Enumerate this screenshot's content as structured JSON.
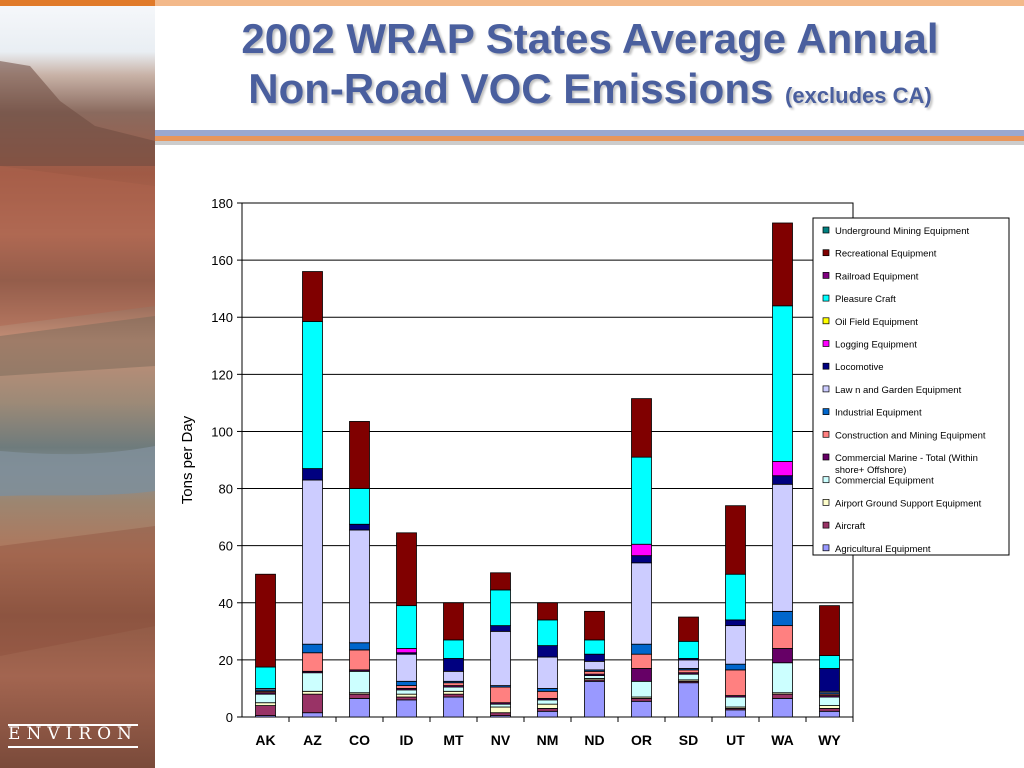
{
  "slide": {
    "title_line1": "2002 WRAP States Average Annual",
    "title_line2": "Non-Road VOC Emissions",
    "title_suffix": "(excludes CA)",
    "logo_text": "ENVIRON",
    "colors": {
      "title": "#4a5f9e",
      "top_bar": "#e07a2a",
      "rule_blue": "#9aa8d0",
      "rule_orange": "#e8965c"
    }
  },
  "chart_data": {
    "type": "bar",
    "stacked": true,
    "title": "",
    "xlabel": "",
    "ylabel": "Tons per Day",
    "ylim": [
      0,
      180
    ],
    "yticks": [
      0,
      20,
      40,
      60,
      80,
      100,
      120,
      140,
      160,
      180
    ],
    "grid": true,
    "legend_position": "top-right",
    "categories": [
      "AK",
      "AZ",
      "CO",
      "ID",
      "MT",
      "NV",
      "NM",
      "ND",
      "OR",
      "SD",
      "UT",
      "WA",
      "WY"
    ],
    "series": [
      {
        "name": "Agricultural Equipment",
        "color": "#9999ff",
        "values": [
          0.5,
          1.5,
          6.5,
          6,
          7,
          0.5,
          2,
          12.5,
          5.5,
          12,
          2.5,
          6.5,
          2
        ]
      },
      {
        "name": "Aircraft",
        "color": "#993366",
        "values": [
          3.5,
          6.5,
          1.5,
          1,
          1,
          1,
          1,
          0.5,
          1,
          0.5,
          0.5,
          1.5,
          1
        ]
      },
      {
        "name": "Airport Ground Support Equipment",
        "color": "#ffffcc",
        "values": [
          1,
          1,
          0.5,
          1,
          1,
          2,
          1.5,
          0.5,
          0.5,
          0.5,
          0.5,
          0.5,
          1
        ]
      },
      {
        "name": "Commercial Equipment",
        "color": "#ccffff",
        "values": [
          3,
          6.5,
          7.5,
          1.5,
          1.5,
          1,
          1.5,
          1,
          5.5,
          2,
          3.5,
          10.5,
          3
        ]
      },
      {
        "name": "Commercial Marine - Total (Within shore+ Offshore)",
        "color": "#660066",
        "values": [
          0.5,
          0.5,
          0.5,
          0.5,
          0.5,
          0.5,
          0.5,
          0.5,
          4.5,
          0.5,
          0.5,
          5,
          0.5
        ]
      },
      {
        "name": "Construction and Mining Equipment",
        "color": "#ff8080",
        "values": [
          0.5,
          6.5,
          7,
          1,
          1,
          5.5,
          2.5,
          1,
          5,
          1,
          9,
          8,
          0.5
        ]
      },
      {
        "name": "Industrial Equipment",
        "color": "#0066cc",
        "values": [
          0.5,
          3,
          2.5,
          1.5,
          0.5,
          0.5,
          1,
          0.5,
          3.5,
          0.5,
          2,
          5,
          0.5
        ]
      },
      {
        "name": "Law n and Garden Equipment",
        "color": "#ccccff",
        "values": [
          0.5,
          57.5,
          39.5,
          9.5,
          3.5,
          19,
          11,
          3,
          28.5,
          3,
          13.5,
          44.5,
          0.5
        ]
      },
      {
        "name": "Locomotive",
        "color": "#000080",
        "values": [
          0,
          4,
          2,
          0.5,
          4.5,
          2,
          4,
          2.5,
          2.5,
          0.5,
          2,
          3,
          8
        ]
      },
      {
        "name": "Logging Equipment",
        "color": "#ff00ff",
        "values": [
          0,
          0,
          0,
          1.5,
          0,
          0,
          0,
          0,
          4,
          0,
          0,
          5,
          0
        ]
      },
      {
        "name": "Oil Field Equipment",
        "color": "#ffff00",
        "values": [
          0,
          0,
          0,
          0,
          0,
          0,
          0,
          0,
          0,
          0,
          0,
          0,
          0
        ]
      },
      {
        "name": "Pleasure Craft",
        "color": "#00ffff",
        "values": [
          7.5,
          51.5,
          12.5,
          15,
          6.5,
          12.5,
          9,
          5,
          30.5,
          6,
          16,
          54.5,
          4.5
        ]
      },
      {
        "name": "Railroad Equipment",
        "color": "#800080",
        "values": [
          0,
          0,
          0,
          0,
          0,
          0,
          0,
          0,
          0,
          0,
          0,
          0,
          0
        ]
      },
      {
        "name": "Recreational Equipment",
        "color": "#800000",
        "values": [
          32.5,
          17.5,
          23.5,
          25.5,
          13,
          6,
          6,
          10,
          20.5,
          8.5,
          24,
          29,
          17.5
        ]
      },
      {
        "name": "Underground Mining Equipment",
        "color": "#008080",
        "values": [
          0,
          0,
          0,
          0,
          0,
          0,
          0,
          0,
          0,
          0,
          0,
          0,
          0
        ]
      }
    ]
  }
}
